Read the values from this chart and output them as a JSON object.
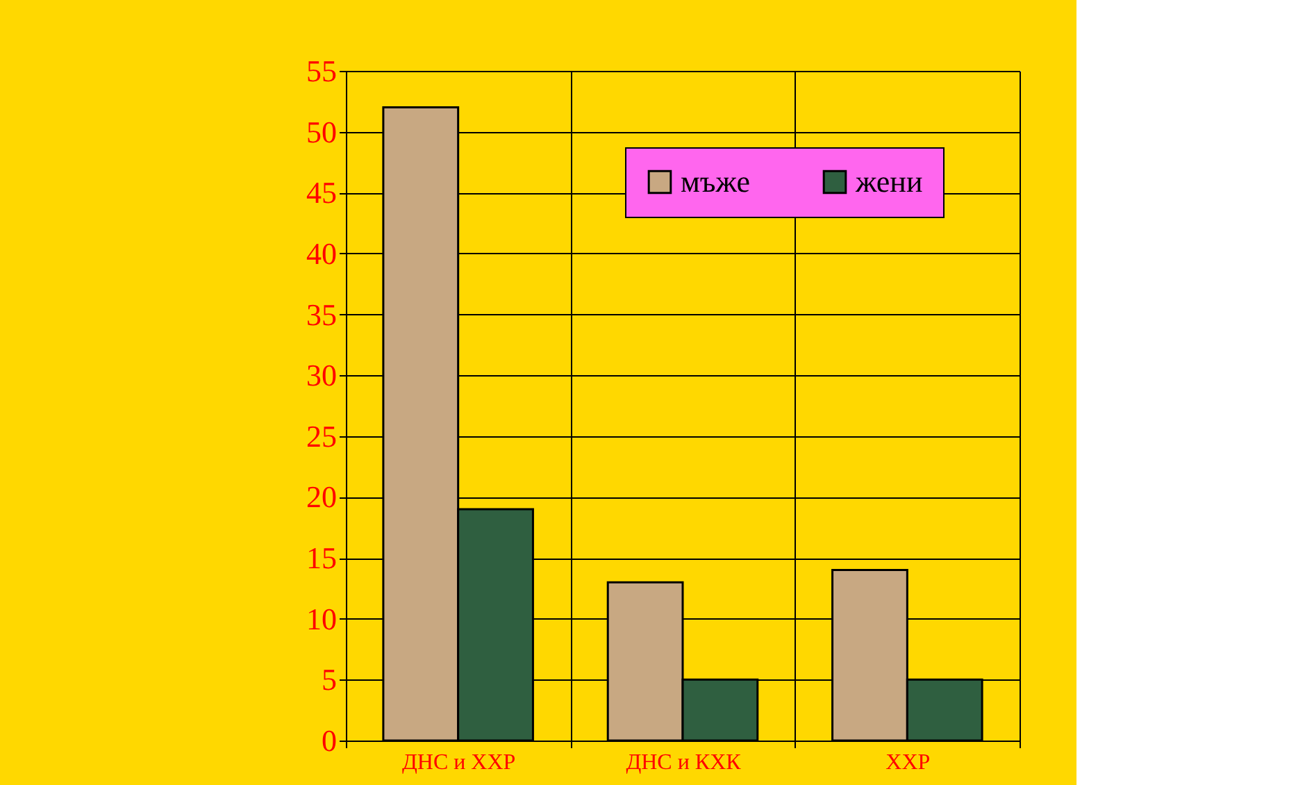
{
  "chart_data": {
    "type": "bar",
    "categories": [
      "ДНС и ХХР",
      "ДНС и КХК",
      "ХХР"
    ],
    "series": [
      {
        "name": "мъже",
        "color": "#c8a882",
        "values": [
          52,
          13,
          14
        ]
      },
      {
        "name": "жени",
        "color": "#2f5f40",
        "values": [
          19,
          5,
          5
        ]
      }
    ],
    "ylim": [
      0,
      55
    ],
    "yticks": [
      0,
      5,
      10,
      15,
      20,
      25,
      30,
      35,
      40,
      45,
      50,
      55
    ],
    "grid": true,
    "legend": "top right"
  }
}
